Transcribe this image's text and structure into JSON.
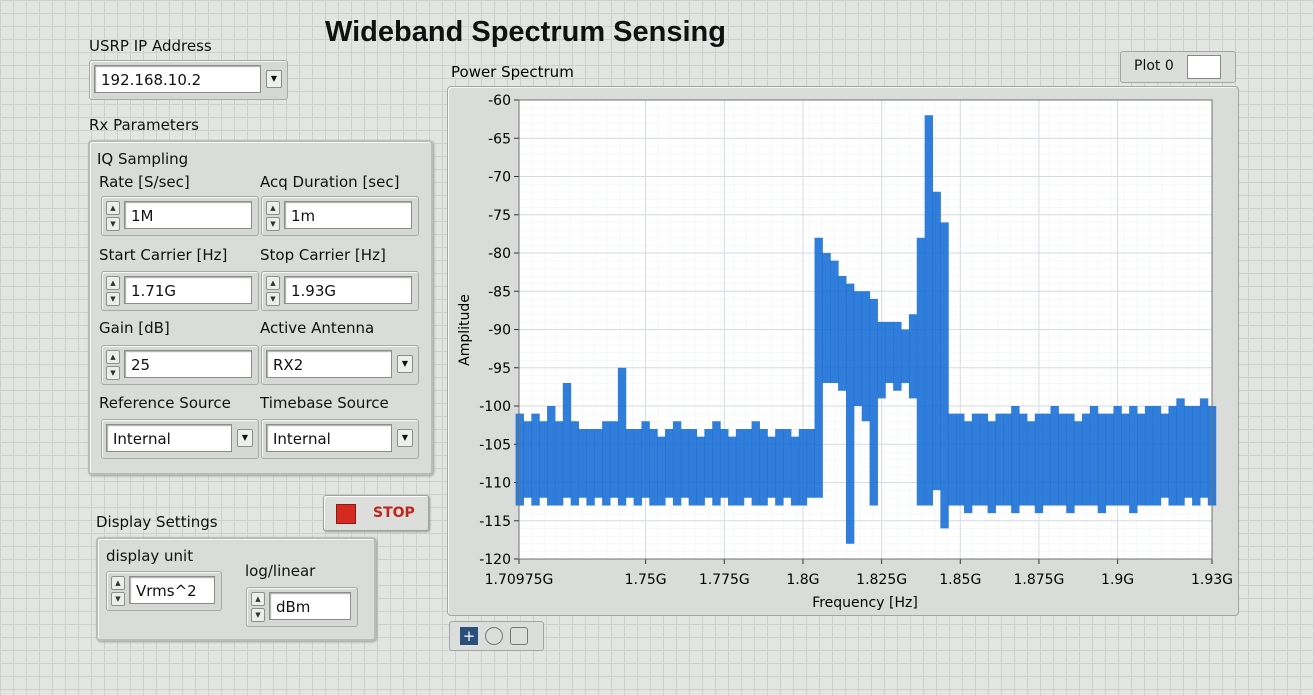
{
  "title": "Wideband Spectrum Sensing",
  "usrp": {
    "label": "USRP IP Address",
    "value": "192.168.10.2",
    "control": "ring"
  },
  "rx": {
    "label": "Rx Parameters",
    "group": "IQ Sampling",
    "fields": [
      {
        "label": "Rate [S/sec]",
        "value": "1M",
        "control": "numeric"
      },
      {
        "label": "Acq Duration [sec]",
        "value": "1m",
        "control": "numeric"
      },
      {
        "label": "Start Carrier [Hz]",
        "value": "1.71G",
        "control": "numeric"
      },
      {
        "label": "Stop Carrier [Hz]",
        "value": "1.93G",
        "control": "numeric"
      },
      {
        "label": "Gain [dB]",
        "value": "25",
        "control": "numeric"
      },
      {
        "label": "Active Antenna",
        "value": "RX2",
        "control": "ring"
      },
      {
        "label": "Reference Source",
        "value": "Internal",
        "control": "ring"
      },
      {
        "label": "Timebase Source",
        "value": "Internal",
        "control": "ring"
      }
    ]
  },
  "display": {
    "label": "Display Settings",
    "fields": [
      {
        "label": "display unit",
        "value": "Vrms^2",
        "control": "numeric"
      },
      {
        "label": "log/linear",
        "value": "dBm",
        "control": "numeric"
      }
    ]
  },
  "stop": "STOP",
  "chart_data": {
    "type": "band",
    "title": "Power Spectrum",
    "x_label": "Frequency [Hz]",
    "y_label": "Amplitude",
    "x": [
      1.71,
      1.7125,
      1.715,
      1.7175,
      1.72,
      1.7225,
      1.725,
      1.7275,
      1.73,
      1.7325,
      1.735,
      1.7375,
      1.74,
      1.7425,
      1.745,
      1.7475,
      1.75,
      1.7525,
      1.755,
      1.7575,
      1.76,
      1.7625,
      1.765,
      1.7675,
      1.77,
      1.7725,
      1.775,
      1.7775,
      1.78,
      1.7825,
      1.785,
      1.7875,
      1.79,
      1.7925,
      1.795,
      1.7975,
      1.8,
      1.8025,
      1.805,
      1.8075,
      1.81,
      1.8125,
      1.815,
      1.8175,
      1.82,
      1.8225,
      1.825,
      1.8275,
      1.83,
      1.8325,
      1.835,
      1.8375,
      1.84,
      1.8425,
      1.845,
      1.8475,
      1.85,
      1.8525,
      1.855,
      1.8575,
      1.86,
      1.8625,
      1.865,
      1.8675,
      1.87,
      1.8725,
      1.875,
      1.8775,
      1.88,
      1.8825,
      1.885,
      1.8875,
      1.89,
      1.8925,
      1.895,
      1.8975,
      1.9,
      1.9025,
      1.905,
      1.9075,
      1.91,
      1.9125,
      1.915,
      1.9175,
      1.92,
      1.9225,
      1.925,
      1.9275,
      1.93
    ],
    "series": [
      {
        "name": "Plot 0",
        "color": "#1a6fd6",
        "values": [
          -101,
          -102,
          -101,
          -102,
          -100,
          -102,
          -97,
          -102,
          -103,
          -103,
          -103,
          -102,
          -102,
          -95,
          -103,
          -103,
          -102,
          -103,
          -104,
          -103,
          -102,
          -103,
          -103,
          -104,
          -103,
          -102,
          -103,
          -104,
          -103,
          -103,
          -102,
          -103,
          -104,
          -103,
          -103,
          -104,
          -103,
          -103,
          -78,
          -80,
          -81,
          -83,
          -84,
          -85,
          -85,
          -86,
          -89,
          -89,
          -89,
          -90,
          -88,
          -78,
          -62,
          -72,
          -76,
          -101,
          -101,
          -102,
          -101,
          -101,
          -102,
          -101,
          -101,
          -100,
          -101,
          -102,
          -101,
          -101,
          -100,
          -101,
          -101,
          -102,
          -101,
          -100,
          -101,
          -101,
          -100,
          -101,
          -100,
          -101,
          -100,
          -100,
          -101,
          -100,
          -99,
          -100,
          -100,
          -99,
          -100
        ],
        "lows": [
          -113,
          -112,
          -113,
          -112,
          -113,
          -113,
          -112,
          -113,
          -112,
          -113,
          -112,
          -113,
          -112,
          -113,
          -112,
          -113,
          -112,
          -113,
          -113,
          -112,
          -113,
          -112,
          -113,
          -113,
          -112,
          -113,
          -112,
          -113,
          -113,
          -112,
          -113,
          -113,
          -112,
          -113,
          -112,
          -113,
          -113,
          -112,
          -112,
          -97,
          -97,
          -98,
          -118,
          -100,
          -102,
          -113,
          -99,
          -97,
          -98,
          -97,
          -99,
          -113,
          -113,
          -111,
          -116,
          -113,
          -113,
          -114,
          -113,
          -113,
          -114,
          -113,
          -113,
          -114,
          -113,
          -113,
          -114,
          -113,
          -113,
          -113,
          -114,
          -113,
          -113,
          -113,
          -114,
          -113,
          -113,
          -113,
          -114,
          -113,
          -113,
          -113,
          -112,
          -113,
          -113,
          -112,
          -113,
          -112,
          -113
        ]
      }
    ],
    "xlim": [
      1.70975,
      1.93
    ],
    "ylim": [
      -120,
      -60
    ],
    "xticks": [
      {
        "value": 1.70975,
        "label": "1.70975G"
      },
      {
        "value": 1.75,
        "label": "1.75G"
      },
      {
        "value": 1.775,
        "label": "1.775G"
      },
      {
        "value": 1.8,
        "label": "1.8G"
      },
      {
        "value": 1.825,
        "label": "1.825G"
      },
      {
        "value": 1.85,
        "label": "1.85G"
      },
      {
        "value": 1.875,
        "label": "1.875G"
      },
      {
        "value": 1.9,
        "label": "1.9G"
      },
      {
        "value": 1.93,
        "label": "1.93G"
      }
    ],
    "yticks": [
      -120,
      -115,
      -110,
      -105,
      -100,
      -95,
      -90,
      -85,
      -80,
      -75,
      -70,
      -65,
      -60
    ],
    "grid": true
  }
}
